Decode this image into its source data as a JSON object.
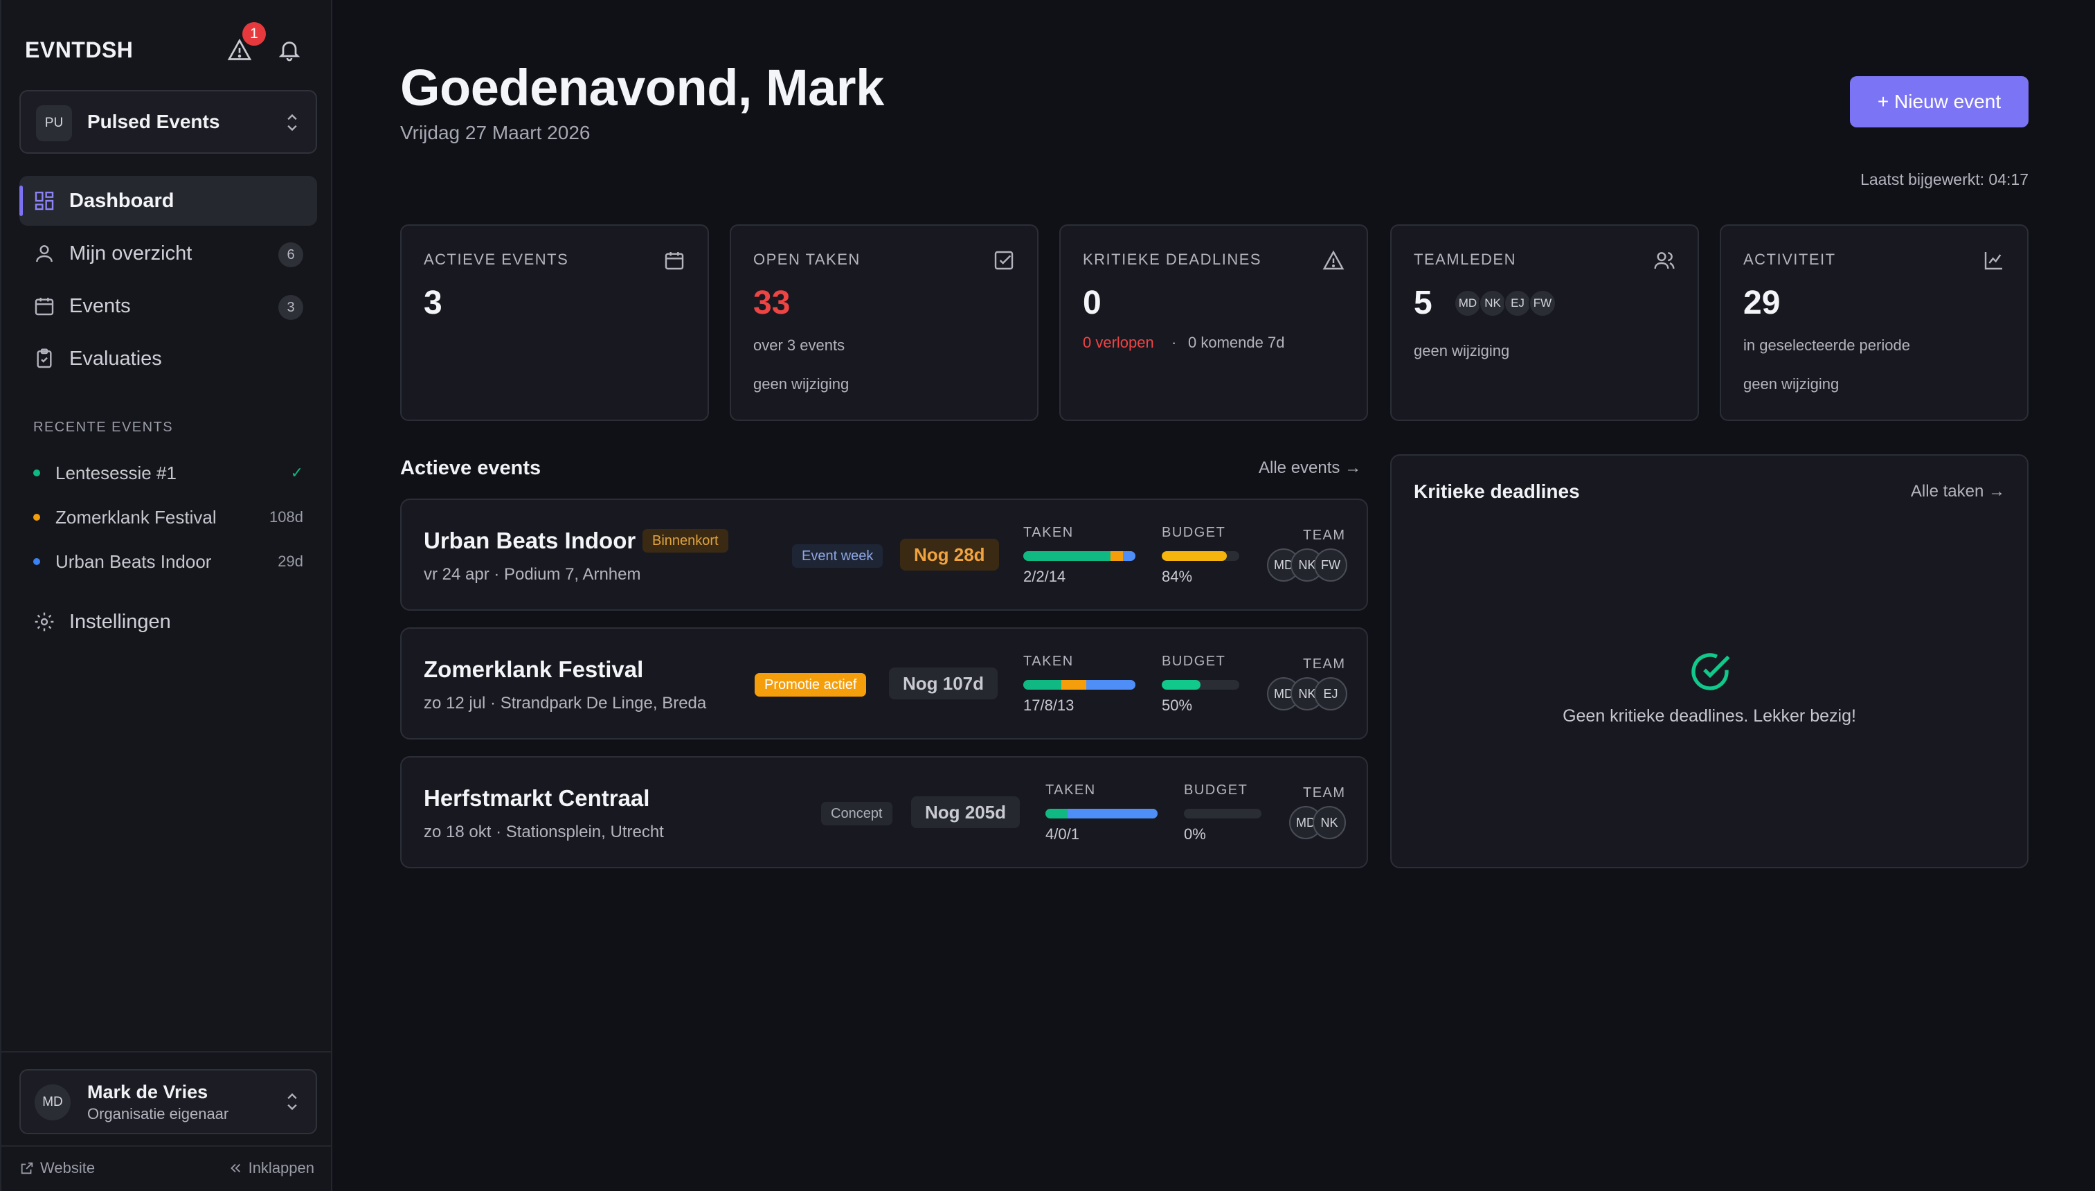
{
  "sidebar": {
    "brand": "EVNTDSH",
    "alert_count": "1",
    "org": {
      "initials": "PU",
      "name": "Pulsed Events"
    },
    "nav": [
      {
        "label": "Dashboard",
        "icon": "dashboard-icon",
        "active": true
      },
      {
        "label": "Mijn overzicht",
        "icon": "user-icon",
        "count": "6"
      },
      {
        "label": "Events",
        "icon": "calendar-icon",
        "count": "3"
      },
      {
        "label": "Evaluaties",
        "icon": "clipboard-check-icon"
      }
    ],
    "recent_heading": "RECENTE EVENTS",
    "recent": [
      {
        "label": "Lentesessie #1",
        "meta": "✓",
        "color": "#10b981"
      },
      {
        "label": "Zomerklank Festival",
        "meta": "108d",
        "color": "#f59e0b"
      },
      {
        "label": "Urban Beats Indoor",
        "meta": "29d",
        "color": "#3b82f6"
      }
    ],
    "settings_label": "Instellingen",
    "user": {
      "initials": "MD",
      "name": "Mark de Vries",
      "role": "Organisatie eigenaar"
    },
    "footer": {
      "website": "Website",
      "collapse": "Inklappen"
    }
  },
  "header": {
    "greeting": "Goedenavond, Mark",
    "date": "Vrijdag 27 Maart 2026",
    "new_event": "+ Nieuw event",
    "last_updated": "Laatst bijgewerkt: 04:17"
  },
  "stats": [
    {
      "title": "ACTIEVE EVENTS",
      "value": "3",
      "icon": "calendar-icon"
    },
    {
      "title": "OPEN TAKEN",
      "value": "33",
      "sub1": "over 3 events",
      "sub2": "geen wijziging",
      "icon": "check-square-icon"
    },
    {
      "title": "KRITIEKE DEADLINES",
      "value": "0",
      "overdue": "0 verlopen",
      "sep": "·",
      "upcoming": "0 komende 7d",
      "icon": "warning-icon"
    },
    {
      "title": "TEAMLEDEN",
      "value": "5",
      "avatars": [
        "MD",
        "NK",
        "EJ",
        "FW"
      ],
      "sub1": "geen wijziging",
      "icon": "users-icon"
    },
    {
      "title": "ACTIVITEIT",
      "value": "29",
      "sub1": "in geselecteerde periode",
      "sub2": "geen wijziging",
      "icon": "chart-line-icon"
    }
  ],
  "active_events": {
    "title": "Actieve events",
    "link": "Alle events →",
    "labels": {
      "tasks": "TAKEN",
      "budget": "BUDGET",
      "team": "TEAM"
    },
    "items": [
      {
        "name": "Urban Beats Indoor",
        "tag": "Binnenkort",
        "phase": "Event week",
        "countdown": "Nog 28d",
        "meta": "vr 24 apr · Podium 7, Arnhem",
        "tasks": "2/2/14",
        "task_segments": [
          0.78,
          0.11,
          0.11
        ],
        "budget": "84%",
        "budget_fill": 0.84,
        "team": [
          "MD",
          "NK",
          "FW"
        ]
      },
      {
        "name": "Zomerklank Festival",
        "tag": "Promotie actief",
        "countdown": "Nog 107d",
        "meta": "zo 12 jul · Strandpark De Linge, Breda",
        "tasks": "17/8/13",
        "task_segments": [
          0.34,
          0.22,
          0.44
        ],
        "budget": "50%",
        "budget_fill": 0.5,
        "team": [
          "MD",
          "NK",
          "EJ"
        ]
      },
      {
        "name": "Herfstmarkt Centraal",
        "tag": "Concept",
        "countdown": "Nog 205d",
        "meta": "zo 18 okt · Stationsplein, Utrecht",
        "tasks": "4/0/1",
        "task_segments": [
          0.2,
          0.0,
          0.8
        ],
        "budget": "0%",
        "budget_fill": 0,
        "team": [
          "MD",
          "NK"
        ]
      }
    ]
  },
  "deadlines": {
    "title": "Kritieke deadlines",
    "link": "Alle taken →",
    "empty": "Geen kritieke deadlines. Lekker bezig!"
  },
  "colors": {
    "accent": "#7b74f4",
    "done": "#10b981",
    "progress": "#f59e0b",
    "todo": "#4f8ef7",
    "danger": "#ef4444"
  }
}
